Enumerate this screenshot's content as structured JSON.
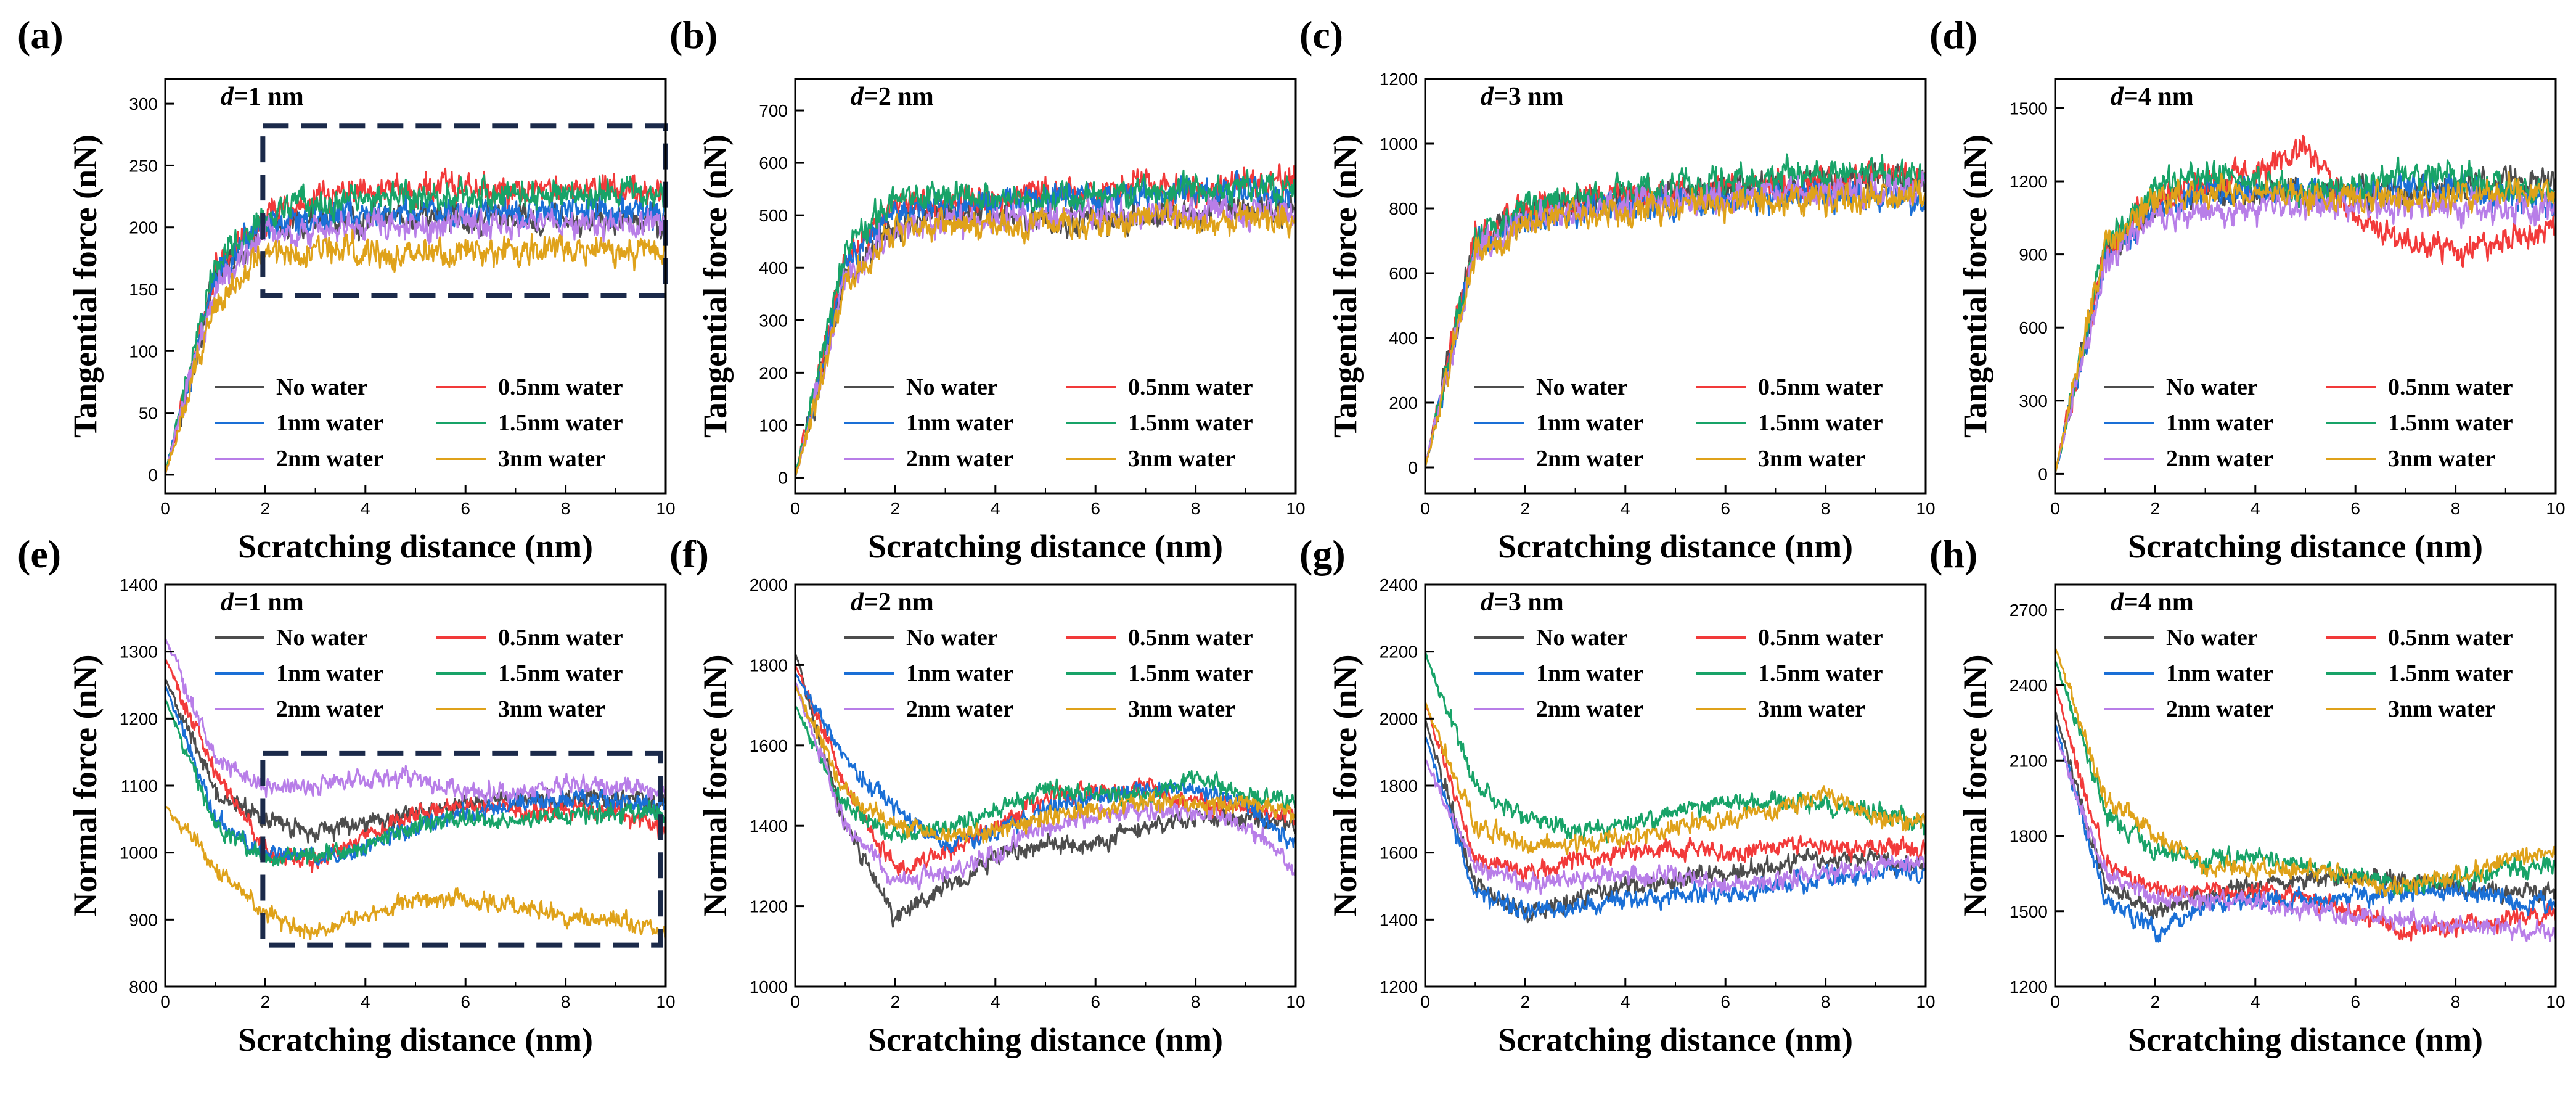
{
  "figure": {
    "series_names": [
      "No water",
      "0.5nm water",
      "1nm water",
      "1.5nm water",
      "2nm water",
      "3nm water"
    ],
    "series_colors": [
      "#4d4d4d",
      "#f23a3a",
      "#1a6fd6",
      "#18a368",
      "#b87ee8",
      "#dfa21a"
    ],
    "box_color": "#1b2a4a"
  },
  "chart_data": [
    {
      "panel": "(a)",
      "d_prefix": "d",
      "d_value": "=1 nm",
      "type": "line",
      "xlabel": "Scratching distance (nm)",
      "ylabel": "Tangential force (nN)",
      "xlim": [
        0,
        10
      ],
      "ylim": [
        -15,
        320
      ],
      "xticks": [
        0,
        2,
        4,
        6,
        8,
        10
      ],
      "yticks": [
        0,
        50,
        100,
        150,
        200,
        250,
        300
      ],
      "legend_position": "lower-right",
      "box": {
        "x": [
          1.95,
          10.0
        ],
        "y": [
          145,
          282
        ]
      },
      "series": [
        {
          "name": "No water",
          "values": [
            0,
            160,
            200,
            205,
            205,
            207,
            208,
            206,
            205,
            207,
            206
          ]
        },
        {
          "name": "0.5nm water",
          "values": [
            0,
            165,
            210,
            222,
            228,
            230,
            232,
            228,
            230,
            232,
            230
          ]
        },
        {
          "name": "1nm water",
          "values": [
            0,
            160,
            205,
            208,
            210,
            212,
            214,
            212,
            213,
            214,
            212
          ]
        },
        {
          "name": "1.5nm water",
          "values": [
            0,
            170,
            212,
            220,
            224,
            226,
            228,
            226,
            228,
            228,
            226
          ]
        },
        {
          "name": "2nm water",
          "values": [
            0,
            150,
            195,
            198,
            200,
            202,
            203,
            202,
            203,
            204,
            202
          ]
        },
        {
          "name": "3nm water",
          "values": [
            0,
            140,
            180,
            180,
            182,
            180,
            181,
            180,
            181,
            182,
            180
          ]
        }
      ]
    },
    {
      "panel": "(b)",
      "d_prefix": "d",
      "d_value": "=2 nm",
      "type": "line",
      "xlabel": "Scratching distance (nm)",
      "ylabel": "Tangential force (nN)",
      "xlim": [
        0,
        10
      ],
      "ylim": [
        -30,
        760
      ],
      "xticks": [
        0,
        2,
        4,
        6,
        8,
        10
      ],
      "yticks": [
        0,
        100,
        200,
        300,
        400,
        500,
        600,
        700
      ],
      "legend_position": "lower-right",
      "series": [
        {
          "name": "No water",
          "values": [
            0,
            380,
            480,
            500,
            505,
            495,
            490,
            500,
            505,
            510,
            505
          ]
        },
        {
          "name": "0.5nm water",
          "values": [
            0,
            420,
            520,
            530,
            530,
            540,
            545,
            560,
            555,
            560,
            560
          ]
        },
        {
          "name": "1nm water",
          "values": [
            0,
            410,
            510,
            525,
            525,
            530,
            535,
            540,
            540,
            545,
            540
          ]
        },
        {
          "name": "1.5nm water",
          "values": [
            0,
            430,
            540,
            540,
            530,
            535,
            540,
            550,
            545,
            550,
            545
          ]
        },
        {
          "name": "2nm water",
          "values": [
            0,
            380,
            470,
            490,
            495,
            495,
            500,
            505,
            505,
            505,
            505
          ]
        },
        {
          "name": "3nm water",
          "values": [
            0,
            370,
            470,
            480,
            485,
            480,
            485,
            490,
            490,
            495,
            490
          ]
        }
      ]
    },
    {
      "panel": "(c)",
      "d_prefix": "d",
      "d_value": "=3 nm",
      "type": "line",
      "xlabel": "Scratching distance (nm)",
      "ylabel": "Tangential force (nN)",
      "xlim": [
        0,
        10
      ],
      "ylim": [
        -80,
        1200
      ],
      "xticks": [
        0,
        2,
        4,
        6,
        8,
        10
      ],
      "yticks": [
        0,
        200,
        400,
        600,
        800,
        1000,
        1200
      ],
      "legend_position": "lower-right",
      "series": [
        {
          "name": "No water",
          "values": [
            0,
            690,
            780,
            810,
            830,
            845,
            860,
            870,
            880,
            890,
            890
          ]
        },
        {
          "name": "0.5nm water",
          "values": [
            0,
            700,
            790,
            820,
            840,
            855,
            865,
            875,
            885,
            895,
            895
          ]
        },
        {
          "name": "1nm water",
          "values": [
            0,
            680,
            760,
            790,
            805,
            815,
            825,
            840,
            845,
            840,
            830
          ]
        },
        {
          "name": "1.5nm water",
          "values": [
            0,
            710,
            800,
            835,
            855,
            870,
            885,
            900,
            910,
            905,
            900
          ]
        },
        {
          "name": "2nm water",
          "values": [
            0,
            670,
            760,
            790,
            810,
            825,
            835,
            845,
            850,
            855,
            860
          ]
        },
        {
          "name": "3nm water",
          "values": [
            0,
            660,
            750,
            780,
            800,
            810,
            815,
            825,
            830,
            835,
            840
          ]
        }
      ]
    },
    {
      "panel": "(d)",
      "d_prefix": "d",
      "d_value": "=4 nm",
      "type": "line",
      "xlabel": "Scratching distance (nm)",
      "ylabel": "Tangential force (nN)",
      "xlim": [
        0,
        10
      ],
      "ylim": [
        -80,
        1620
      ],
      "xticks": [
        0,
        2,
        4,
        6,
        8,
        10
      ],
      "yticks": [
        0,
        300,
        600,
        900,
        1200,
        1500
      ],
      "legend_position": "lower-right",
      "series": [
        {
          "name": "No water",
          "values": [
            0,
            900,
            1100,
            1150,
            1160,
            1150,
            1140,
            1160,
            1170,
            1200,
            1210
          ]
        },
        {
          "name": "0.5nm water",
          "values": [
            0,
            920,
            1130,
            1180,
            1230,
            1330,
            1050,
            950,
            930,
            960,
            1000
          ]
        },
        {
          "name": "1nm water",
          "values": [
            0,
            880,
            1100,
            1150,
            1160,
            1150,
            1160,
            1180,
            1160,
            1130,
            1100
          ]
        },
        {
          "name": "1.5nm water",
          "values": [
            0,
            930,
            1180,
            1230,
            1200,
            1160,
            1180,
            1220,
            1240,
            1180,
            1140
          ]
        },
        {
          "name": "2nm water",
          "values": [
            0,
            860,
            1060,
            1080,
            1080,
            1090,
            1100,
            1100,
            1090,
            1090,
            1080
          ]
        },
        {
          "name": "3nm water",
          "values": [
            0,
            940,
            1120,
            1160,
            1150,
            1140,
            1120,
            1130,
            1140,
            1150,
            1150
          ]
        }
      ]
    },
    {
      "panel": "(e)",
      "d_prefix": "d",
      "d_value": "=1 nm",
      "type": "line",
      "xlabel": "Scratching distance (nm)",
      "ylabel": "Normal force (nN)",
      "xlim": [
        0,
        10
      ],
      "ylim": [
        800,
        1400
      ],
      "xticks": [
        0,
        2,
        4,
        6,
        8,
        10
      ],
      "yticks": [
        800,
        900,
        1000,
        1100,
        1200,
        1300,
        1400
      ],
      "legend_position": "top-right",
      "box": {
        "x": [
          1.95,
          9.9
        ],
        "y": [
          862,
          1148
        ]
      },
      "series": [
        {
          "name": "No water",
          "values": [
            1260,
            1090,
            1050,
            1030,
            1040,
            1060,
            1075,
            1080,
            1080,
            1080,
            1075
          ]
        },
        {
          "name": "0.5nm water",
          "values": [
            1290,
            1120,
            1000,
            990,
            1020,
            1060,
            1070,
            1065,
            1060,
            1060,
            1030
          ]
        },
        {
          "name": "1nm water",
          "values": [
            1250,
            1050,
            1000,
            990,
            1010,
            1040,
            1060,
            1075,
            1080,
            1080,
            1070
          ]
        },
        {
          "name": "1.5nm water",
          "values": [
            1230,
            1040,
            990,
            995,
            1010,
            1040,
            1050,
            1050,
            1055,
            1060,
            1060
          ]
        },
        {
          "name": "2nm water",
          "values": [
            1320,
            1140,
            1100,
            1100,
            1110,
            1110,
            1090,
            1090,
            1100,
            1100,
            1090
          ]
        },
        {
          "name": "3nm water",
          "values": [
            1070,
            980,
            910,
            880,
            905,
            930,
            930,
            925,
            905,
            900,
            875
          ]
        }
      ]
    },
    {
      "panel": "(f)",
      "d_prefix": "d",
      "d_value": "=2 nm",
      "type": "line",
      "xlabel": "Scratching distance (nm)",
      "ylabel": "Normal force (nN)",
      "xlim": [
        0,
        10
      ],
      "ylim": [
        1000,
        2000
      ],
      "xticks": [
        0,
        2,
        4,
        6,
        8,
        10
      ],
      "yticks": [
        1000,
        1200,
        1400,
        1600,
        1800,
        2000
      ],
      "legend_position": "top-right",
      "series": [
        {
          "name": "No water",
          "values": [
            1830,
            1400,
            1170,
            1250,
            1320,
            1360,
            1350,
            1400,
            1420,
            1420,
            1400
          ]
        },
        {
          "name": "0.5nm water",
          "values": [
            1800,
            1500,
            1290,
            1330,
            1400,
            1470,
            1490,
            1500,
            1460,
            1440,
            1420
          ]
        },
        {
          "name": "1nm water",
          "values": [
            1780,
            1560,
            1440,
            1350,
            1380,
            1440,
            1470,
            1490,
            1490,
            1450,
            1360
          ]
        },
        {
          "name": "1.5nm water",
          "values": [
            1700,
            1450,
            1370,
            1390,
            1440,
            1490,
            1480,
            1470,
            1520,
            1480,
            1450
          ]
        },
        {
          "name": "2nm water",
          "values": [
            1760,
            1400,
            1260,
            1280,
            1330,
            1400,
            1420,
            1440,
            1430,
            1400,
            1300
          ]
        },
        {
          "name": "3nm water",
          "values": [
            1750,
            1480,
            1400,
            1370,
            1390,
            1420,
            1440,
            1460,
            1450,
            1460,
            1430
          ]
        }
      ]
    },
    {
      "panel": "(g)",
      "d_prefix": "d",
      "d_value": "=3 nm",
      "type": "line",
      "xlabel": "Scratching distance (nm)",
      "ylabel": "Normal force (nN)",
      "xlim": [
        0,
        10
      ],
      "ylim": [
        1200,
        2400
      ],
      "xticks": [
        0,
        2,
        4,
        6,
        8,
        10
      ],
      "yticks": [
        1200,
        1400,
        1600,
        1800,
        2000,
        2200,
        2400
      ],
      "legend_position": "top-right",
      "series": [
        {
          "name": "No water",
          "values": [
            2000,
            1500,
            1420,
            1460,
            1500,
            1520,
            1540,
            1560,
            1580,
            1580,
            1560
          ]
        },
        {
          "name": "0.5nm water",
          "values": [
            2050,
            1580,
            1540,
            1580,
            1600,
            1610,
            1600,
            1620,
            1620,
            1610,
            1620
          ]
        },
        {
          "name": "1nm water",
          "values": [
            1950,
            1480,
            1420,
            1440,
            1460,
            1470,
            1480,
            1500,
            1520,
            1540,
            1550
          ]
        },
        {
          "name": "1.5nm water",
          "values": [
            2200,
            1800,
            1700,
            1660,
            1680,
            1720,
            1750,
            1760,
            1740,
            1720,
            1680
          ]
        },
        {
          "name": "2nm water",
          "values": [
            1880,
            1560,
            1500,
            1520,
            1540,
            1540,
            1500,
            1510,
            1540,
            1560,
            1580
          ]
        },
        {
          "name": "3nm water",
          "values": [
            2050,
            1680,
            1620,
            1620,
            1640,
            1680,
            1700,
            1730,
            1780,
            1700,
            1700
          ]
        }
      ]
    },
    {
      "panel": "(h)",
      "d_prefix": "d",
      "d_value": "=4 nm",
      "type": "line",
      "xlabel": "Scratching distance (nm)",
      "ylabel": "Normal force (nN)",
      "xlim": [
        0,
        10
      ],
      "ylim": [
        1200,
        2800
      ],
      "xticks": [
        0,
        2,
        4,
        6,
        8,
        10
      ],
      "yticks": [
        1200,
        1500,
        1800,
        2100,
        2400,
        2700
      ],
      "legend_position": "top-right",
      "series": [
        {
          "name": "No water",
          "values": [
            2300,
            1600,
            1500,
            1560,
            1600,
            1620,
            1630,
            1620,
            1590,
            1580,
            1580
          ]
        },
        {
          "name": "0.5nm water",
          "values": [
            2400,
            1700,
            1580,
            1580,
            1580,
            1560,
            1500,
            1420,
            1440,
            1460,
            1500
          ]
        },
        {
          "name": "1nm water",
          "values": [
            2250,
            1550,
            1430,
            1520,
            1550,
            1540,
            1560,
            1570,
            1580,
            1550,
            1520
          ]
        },
        {
          "name": "1.5nm water",
          "values": [
            2500,
            1900,
            1740,
            1700,
            1720,
            1680,
            1640,
            1600,
            1620,
            1660,
            1680
          ]
        },
        {
          "name": "2nm water",
          "values": [
            2200,
            1650,
            1560,
            1540,
            1530,
            1510,
            1480,
            1460,
            1450,
            1430,
            1420
          ]
        },
        {
          "name": "3nm water",
          "values": [
            2550,
            1950,
            1800,
            1680,
            1660,
            1680,
            1620,
            1600,
            1640,
            1700,
            1740
          ]
        }
      ]
    }
  ]
}
